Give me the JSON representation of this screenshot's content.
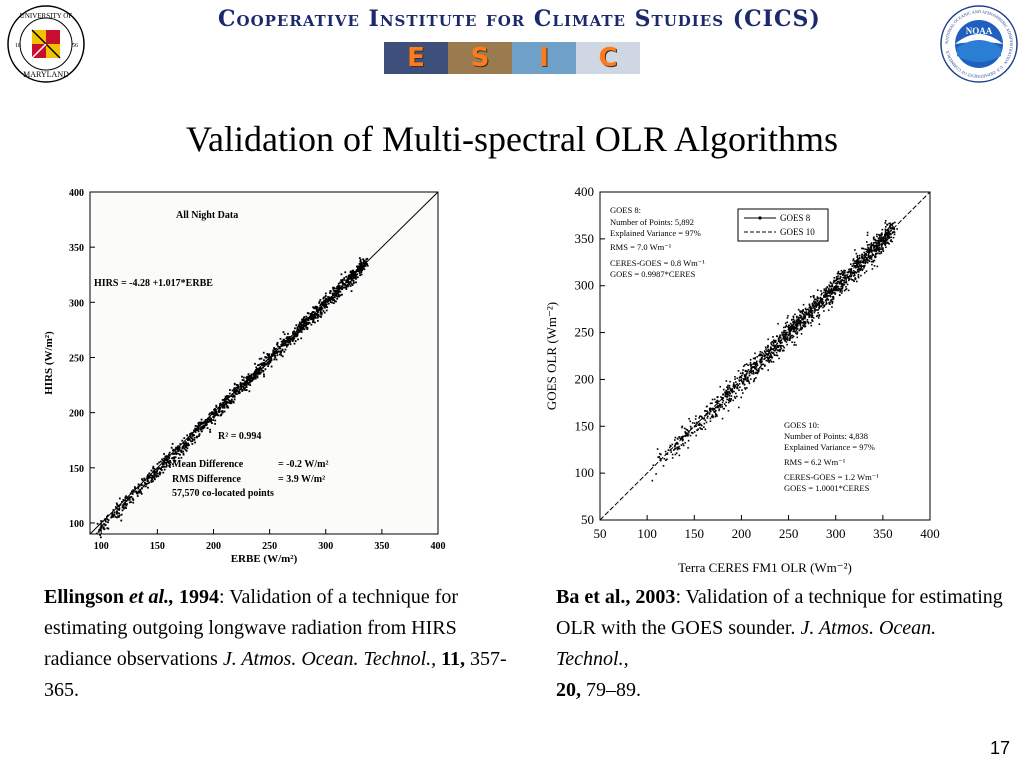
{
  "header": {
    "institute_title": "Cooperative Institute for Climate Studies (CICS)",
    "banner_letters": [
      "E",
      "S",
      "I",
      "C"
    ],
    "umd_seal": {
      "top_text": "UNIVERSITY OF",
      "bottom_text": "MARYLAND",
      "left_year": "18",
      "right_year": "56"
    },
    "noaa_seal": {
      "center_text": "NOAA",
      "ring_text": "NATIONAL OCEANIC AND ATMOSPHERIC ADMINISTRATION · U.S. DEPARTMENT OF COMMERCE"
    }
  },
  "slide": {
    "title": "Validation of Multi-spectral OLR Algorithms",
    "page_number": "17"
  },
  "chart_data": [
    {
      "type": "scatter",
      "title": "All Night Data",
      "xlabel": "ERBE (W/m²)",
      "ylabel": "HIRS (W/m²)",
      "xlim": [
        90,
        400
      ],
      "ylim": [
        90,
        400
      ],
      "x_ticks": [
        100,
        150,
        200,
        250,
        300,
        350,
        400
      ],
      "y_ticks": [
        100,
        150,
        200,
        250,
        300,
        350,
        400
      ],
      "one_to_one_line": true,
      "fit": {
        "intercept": -4.28,
        "slope": 1.017
      },
      "x_range_of_points": [
        95,
        335
      ],
      "annotations": {
        "regression": "HIRS = -4.28 +1.017*ERBE",
        "r2": "R² = 0.994",
        "mean_difference_label": "Mean Difference",
        "mean_difference_value": "= -0.2 W/m²",
        "rms_difference_label": "RMS Difference",
        "rms_difference_value": "= 3.9 W/m²",
        "points": "57,570 co-located points"
      }
    },
    {
      "type": "scatter",
      "xlabel": "Terra CERES FM1 OLR (Wm⁻²)",
      "ylabel": "GOES OLR (Wm⁻²)",
      "xlim": [
        50,
        400
      ],
      "ylim": [
        50,
        400
      ],
      "x_ticks": [
        50,
        100,
        150,
        200,
        250,
        300,
        350,
        400
      ],
      "y_ticks": [
        50,
        100,
        150,
        200,
        250,
        300,
        350,
        400
      ],
      "one_to_one_line": true,
      "x_range_of_points": [
        105,
        360
      ],
      "legend": {
        "position": "top-right",
        "entries": [
          "GOES 8",
          "GOES 10"
        ]
      },
      "series": [
        {
          "name": "GOES 8",
          "stats": [
            "GOES 8:",
            "Number of Points: 5,892",
            "Explained Variance = 97%",
            "RMS = 7.0 Wm⁻¹",
            "CERES-GOES = 0.8 Wm⁻¹",
            "GOES = 0.9987*CERES"
          ]
        },
        {
          "name": "GOES 10",
          "stats": [
            "GOES 10:",
            "Number of Points: 4,838",
            "Explained Variance = 97%",
            "RMS = 6.2 Wm⁻¹",
            "CERES-GOES = 1.2 Wm⁻¹",
            "GOES = 1.0001*CERES"
          ]
        }
      ]
    }
  ],
  "references": {
    "left": {
      "author": "Ellingson",
      "etal": "et al.,",
      "year": "1994",
      "text": ": Validation of a technique for estimating outgoing longwave radiation from HIRS radiance observations",
      "journal": "J. Atmos. Ocean. Technol.,",
      "volume": "11,",
      "pages": "357-365."
    },
    "right": {
      "author_year": "Ba et al., 2003",
      "text": ": Validation of a technique for estimating OLR with the GOES sounder.",
      "journal": "J. Atmos. Ocean. Technol.,",
      "volume": "20,",
      "pages": "79–89."
    }
  }
}
